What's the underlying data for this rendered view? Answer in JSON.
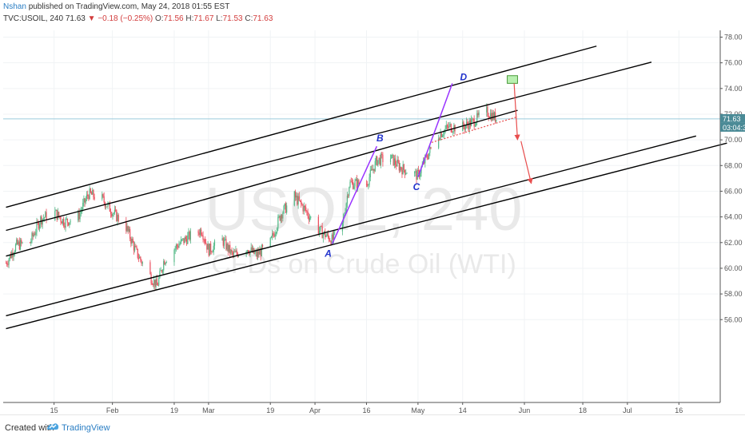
{
  "header": {
    "author": "Nshan",
    "published_text": "published on TradingView.com, May 24, 2018 01:55 EST",
    "symbol": "TVC:USOIL, 240",
    "last": "71.63",
    "change_arrow": "▼",
    "change": "−0.18 (−0.25%)",
    "o_label": "O:",
    "o_value": "71.56",
    "h_label": "H:",
    "h_value": "71.67",
    "l_label": "L:",
    "l_value": "71.53",
    "c_label": "C:",
    "c_value": "71.63"
  },
  "watermark": {
    "symbol": "USOIL, 240",
    "description": "CFDs on Crude Oil (WTI)"
  },
  "price_badge": {
    "price": "71.63",
    "countdown": "03:04:3"
  },
  "footer": {
    "created_with": "Created with",
    "brand": "TradingView"
  },
  "colors": {
    "up": "#53b987",
    "down": "#eb4d5c",
    "channel": "#000000",
    "wave": "#9933ff",
    "wave_label": "#2233cc",
    "target_box": "#b9f0b0",
    "arrow": "#e84d4d",
    "price_line": "#7fb8d4",
    "badge": "#4a8a96"
  },
  "chart_data": {
    "type": "candlestick",
    "symbol": "TVC:USOIL",
    "interval": "240",
    "y_ticks": [
      "78.00",
      "76.00",
      "74.00",
      "72.00",
      "70.00",
      "68.00",
      "66.00",
      "64.00",
      "62.00",
      "60.00",
      "58.00",
      "56.00"
    ],
    "ylim": [
      55.3,
      78.6
    ],
    "x_ticks": [
      "15",
      "Feb",
      "19",
      "Mar",
      "19",
      "Apr",
      "16",
      "May",
      "14",
      "Jun",
      "18",
      "Jul",
      "16"
    ],
    "x_tick_dates": [
      "2018-01-15",
      "2018-02-01",
      "2018-02-19",
      "2018-03-01",
      "2018-03-19",
      "2018-04-01",
      "2018-04-16",
      "2018-05-01",
      "2018-05-14",
      "2018-06-01",
      "2018-06-18",
      "2018-07-01",
      "2018-07-16"
    ],
    "last_price": 71.63,
    "close_path": [
      [
        "2018-01-01",
        60.4
      ],
      [
        "2018-01-04",
        61.8
      ],
      [
        "2018-01-08",
        62.0
      ],
      [
        "2018-01-11",
        63.8
      ],
      [
        "2018-01-15",
        64.4
      ],
      [
        "2018-01-18",
        63.6
      ],
      [
        "2018-01-22",
        64.0
      ],
      [
        "2018-01-25",
        65.8
      ],
      [
        "2018-01-29",
        65.4
      ],
      [
        "2018-02-01",
        64.4
      ],
      [
        "2018-02-05",
        63.2
      ],
      [
        "2018-02-08",
        61.2
      ],
      [
        "2018-02-12",
        59.4
      ],
      [
        "2018-02-14",
        58.6
      ],
      [
        "2018-02-16",
        60.6
      ],
      [
        "2018-02-20",
        61.8
      ],
      [
        "2018-02-23",
        62.4
      ],
      [
        "2018-02-27",
        63.0
      ],
      [
        "2018-03-01",
        61.4
      ],
      [
        "2018-03-05",
        62.2
      ],
      [
        "2018-03-08",
        61.0
      ],
      [
        "2018-03-12",
        61.6
      ],
      [
        "2018-03-15",
        61.0
      ],
      [
        "2018-03-19",
        62.0
      ],
      [
        "2018-03-22",
        64.2
      ],
      [
        "2018-03-26",
        65.6
      ],
      [
        "2018-03-29",
        64.6
      ],
      [
        "2018-04-02",
        63.0
      ],
      [
        "2018-04-06",
        62.2
      ],
      [
        "2018-04-09",
        63.4
      ],
      [
        "2018-04-11",
        66.6
      ],
      [
        "2018-04-16",
        66.6
      ],
      [
        "2018-04-19",
        68.4
      ],
      [
        "2018-04-23",
        68.6
      ],
      [
        "2018-04-26",
        67.8
      ],
      [
        "2018-05-01",
        67.2
      ],
      [
        "2018-05-03",
        68.4
      ],
      [
        "2018-05-07",
        70.4
      ],
      [
        "2018-05-10",
        71.0
      ],
      [
        "2018-05-14",
        71.0
      ],
      [
        "2018-05-17",
        71.4
      ],
      [
        "2018-05-21",
        72.2
      ],
      [
        "2018-05-24",
        71.63
      ]
    ],
    "wave_labels": [
      {
        "label": "A",
        "date": "2018-04-06",
        "price": 61.9
      },
      {
        "label": "B",
        "date": "2018-04-19",
        "price": 69.5
      },
      {
        "label": "C",
        "date": "2018-05-01",
        "price": 67.1
      },
      {
        "label": "D",
        "date": "2018-05-11",
        "price": 74.4
      }
    ],
    "channels": [
      {
        "from": [
          "2018-01-01",
          64.75
        ],
        "to": [
          "2018-06-22",
          77.3
        ]
      },
      {
        "from": [
          "2018-01-01",
          62.95
        ],
        "to": [
          "2018-07-08",
          76.05
        ]
      },
      {
        "from": [
          "2018-01-01",
          60.95
        ],
        "to": [
          "2018-05-30",
          72.3
        ]
      },
      {
        "from": [
          "2018-01-01",
          56.3
        ],
        "to": [
          "2018-07-21",
          70.3
        ]
      },
      {
        "from": [
          "2018-01-01",
          55.3
        ],
        "to": [
          "2018-07-30",
          69.75
        ]
      }
    ],
    "target_zone": {
      "from_date": "2018-05-27",
      "to_date": "2018-05-30",
      "high": 75.0,
      "low": 74.4
    },
    "projection_arrows": [
      {
        "from": [
          "2018-05-29",
          74.4
        ],
        "to": [
          "2018-05-30",
          70.0
        ]
      },
      {
        "from": [
          "2018-05-31",
          69.9
        ],
        "to": [
          "2018-06-03",
          66.6
        ]
      }
    ],
    "support_line": {
      "from": [
        "2018-05-05",
        69.8
      ],
      "to": [
        "2018-05-30",
        71.8
      ]
    }
  }
}
